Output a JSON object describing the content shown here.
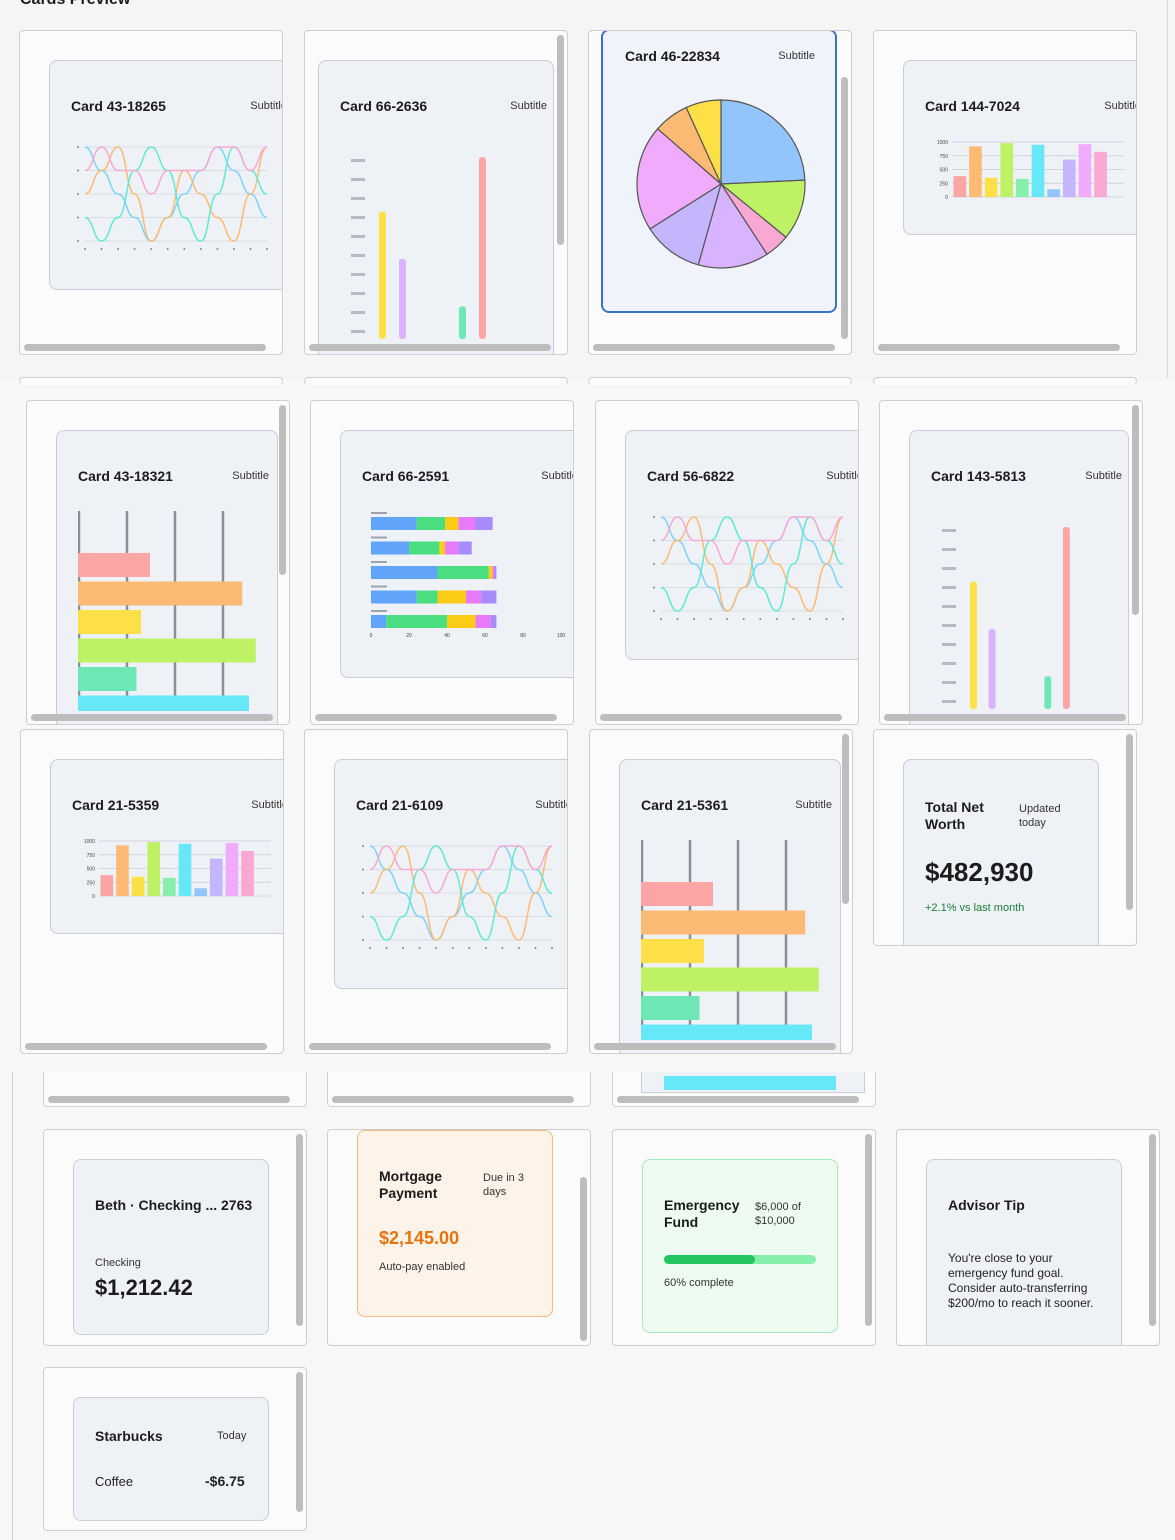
{
  "page": {
    "heading": "Cards Preview"
  },
  "cards": {
    "c1": {
      "title": "Card 43-18265",
      "subtitle": "Subtitle"
    },
    "c2": {
      "title": "Card 66-2636",
      "subtitle": "Subtitle"
    },
    "c3": {
      "title": "Card 46-22834",
      "subtitle": "Subtitle"
    },
    "c4": {
      "title": "Card 144-7024",
      "subtitle": "Subtitle"
    },
    "c5": {
      "title": "Card 43-18321",
      "subtitle": "Subtitle"
    },
    "c6": {
      "title": "Card 66-2591",
      "subtitle": "Subtitle"
    },
    "c7": {
      "title": "Card 56-6822",
      "subtitle": "Subtitle"
    },
    "c8": {
      "title": "Card 143-5813",
      "subtitle": "Subtitle"
    },
    "c9": {
      "title": "Card 21-5359",
      "subtitle": "Subtitle"
    },
    "c10": {
      "title": "Card 21-6109",
      "subtitle": "Subtitle"
    },
    "c11": {
      "title": "Card 21-5361",
      "subtitle": "Subtitle"
    }
  },
  "networth": {
    "title": "Total Net Worth",
    "note": "Updated today",
    "value": "$482,930",
    "change": "+2.1% vs last month",
    "change_color": "#1a7f37"
  },
  "account": {
    "title": "Beth · Checking ... 2763",
    "type": "Checking",
    "balance": "$1,212.42"
  },
  "mortgage": {
    "title": "Mortgage Payment",
    "due": "Due in 3 days",
    "amount": "$2,145.00",
    "note": "Auto-pay enabled",
    "accent": "#e8720c"
  },
  "emergency": {
    "title": "Emergency Fund",
    "goal": "$6,000 of $10,000",
    "progress": 0.6,
    "status": "60% complete",
    "accent": "#22c55e"
  },
  "tip": {
    "title": "Advisor Tip",
    "body": "You're close to your emergency fund goal. Consider auto-transferring $200/mo to reach it sooner."
  },
  "txn": {
    "merchant": "Starbucks",
    "date": "Today",
    "category": "Coffee",
    "amount": "-$6.75"
  },
  "chart_data": [
    {
      "type": "line",
      "card": "Card 43-18265",
      "series": [
        {
          "values": [
            5,
            4,
            3,
            2,
            1,
            2,
            3,
            4,
            5,
            4,
            3,
            2
          ]
        },
        {
          "values": [
            3,
            4,
            5,
            3,
            1,
            2,
            4,
            3,
            2,
            1,
            3,
            5
          ]
        },
        {
          "values": [
            2,
            1,
            2,
            4,
            5,
            4,
            2,
            1,
            3,
            5,
            4,
            3
          ]
        },
        {
          "values": [
            4,
            5,
            4,
            4,
            3,
            4,
            4,
            4,
            5,
            5,
            4,
            5
          ]
        }
      ]
    },
    {
      "type": "bar",
      "card": "Card 66-2636",
      "values": [
        70,
        44,
        0,
        0,
        18,
        100,
        0
      ]
    },
    {
      "type": "pie",
      "card": "Card 46-22834",
      "values": [
        25,
        12,
        5,
        14,
        12,
        21,
        7,
        7
      ],
      "colors": [
        "#93c5fd",
        "#bef264",
        "#f9a8d4",
        "#d8b4fe",
        "#c4b5fd",
        "#f0abfc",
        "#fdba74",
        "#fde047"
      ]
    },
    {
      "type": "bar",
      "card": "Card 144-7024",
      "ylim": [
        0,
        1000
      ],
      "yticks": [
        "1000",
        "750",
        "500",
        "250",
        "0"
      ],
      "values": [
        380,
        920,
        350,
        980,
        330,
        950,
        140,
        680,
        960,
        820,
        30
      ]
    },
    {
      "type": "bar",
      "orientation": "horizontal",
      "card": "Card 43-18321",
      "values": [
        32,
        73,
        28,
        79,
        26,
        76
      ]
    },
    {
      "type": "bar",
      "orientation": "horizontal",
      "stacked": true,
      "card": "Card 66-2591",
      "rows": [
        [
          24,
          15,
          7,
          9,
          9
        ],
        [
          20,
          16,
          3,
          7,
          7
        ],
        [
          35,
          27,
          2,
          1,
          1
        ],
        [
          24,
          11,
          15,
          8,
          8
        ],
        [
          8,
          32,
          15,
          8,
          3
        ]
      ],
      "xticks": [
        "0",
        "20",
        "40",
        "60",
        "80",
        "100"
      ]
    },
    {
      "type": "line",
      "card": "Card 56-6822",
      "series": [
        {
          "values": [
            5,
            4,
            3,
            2,
            1,
            2,
            3,
            4,
            5,
            4,
            3,
            2
          ]
        },
        {
          "values": [
            3,
            4,
            5,
            3,
            1,
            2,
            4,
            3,
            2,
            1,
            3,
            5
          ]
        },
        {
          "values": [
            2,
            1,
            2,
            4,
            5,
            4,
            2,
            1,
            3,
            5,
            4,
            3
          ]
        },
        {
          "values": [
            4,
            5,
            4,
            4,
            3,
            4,
            4,
            4,
            5,
            5,
            4,
            5
          ]
        }
      ]
    },
    {
      "type": "bar",
      "card": "Card 143-5813",
      "values": [
        70,
        44,
        0,
        0,
        18,
        100,
        0
      ]
    },
    {
      "type": "bar",
      "card": "Card 21-5359",
      "ylim": [
        0,
        1000
      ],
      "yticks": [
        "1000",
        "750",
        "500",
        "250",
        "0"
      ],
      "values": [
        380,
        920,
        350,
        980,
        330,
        950,
        140,
        680,
        960,
        820,
        30
      ]
    },
    {
      "type": "line",
      "card": "Card 21-6109",
      "series": [
        {
          "values": [
            5,
            4,
            3,
            2,
            1,
            2,
            3,
            4,
            5,
            4,
            3,
            2
          ]
        },
        {
          "values": [
            3,
            4,
            5,
            3,
            1,
            2,
            4,
            3,
            2,
            1,
            3,
            5
          ]
        },
        {
          "values": [
            2,
            1,
            2,
            4,
            5,
            4,
            2,
            1,
            3,
            5,
            4,
            3
          ]
        },
        {
          "values": [
            4,
            5,
            4,
            4,
            3,
            4,
            4,
            4,
            5,
            5,
            4,
            5
          ]
        }
      ]
    },
    {
      "type": "bar",
      "orientation": "horizontal",
      "card": "Card 21-5361",
      "values": [
        32,
        73,
        28,
        79,
        26,
        76
      ]
    }
  ]
}
